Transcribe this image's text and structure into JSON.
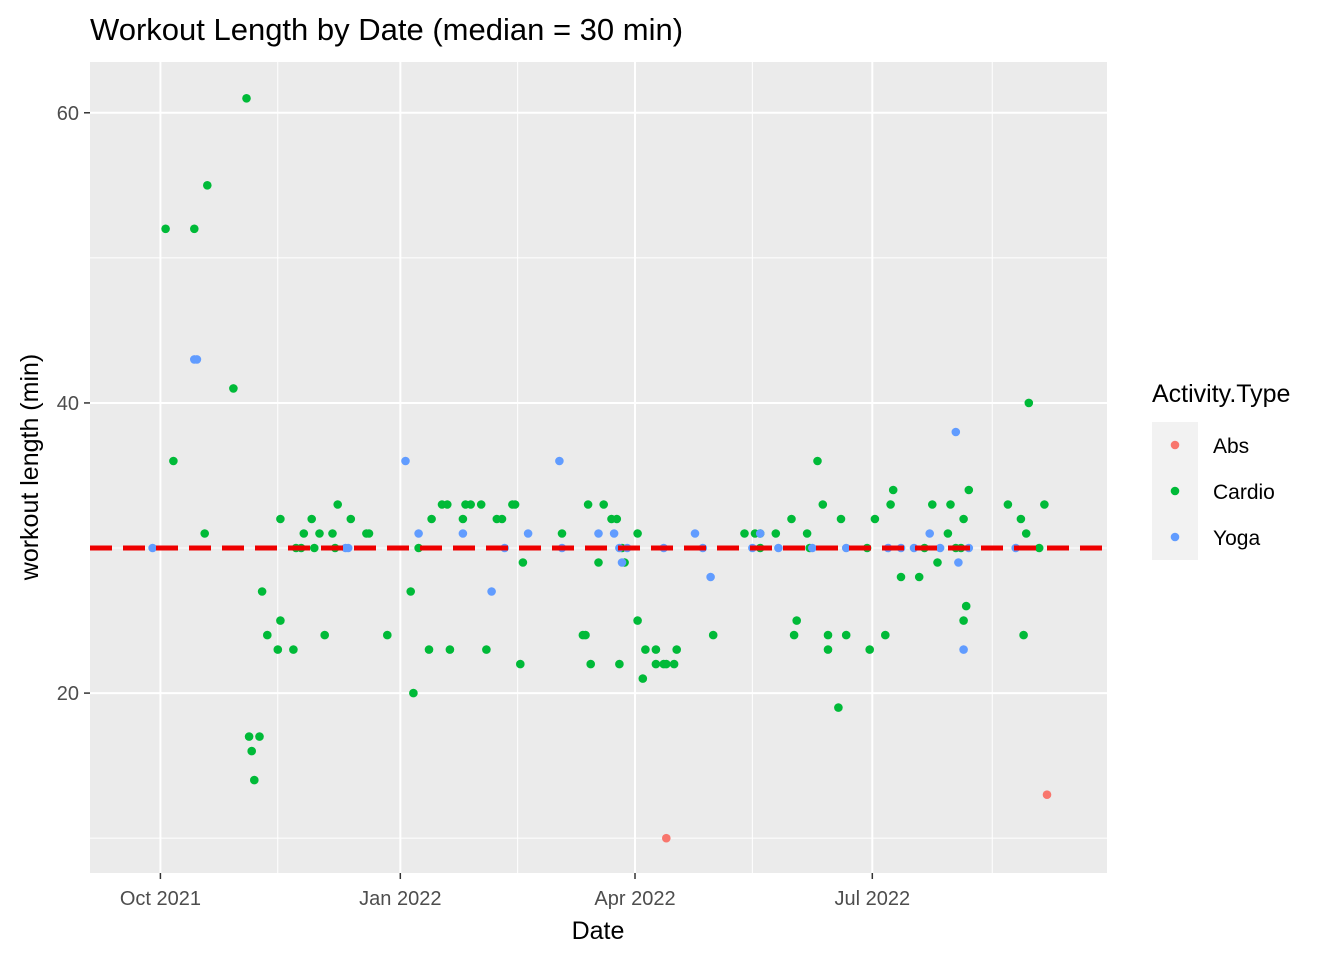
{
  "chart_data": {
    "type": "scatter",
    "title": "Workout Length by Date (median =  30  min)",
    "xlabel": "Date",
    "ylabel": "workout length (min)",
    "x_ticks": [
      "2021-10-01",
      "2022-01-01",
      "2022-04-01",
      "2022-07-01"
    ],
    "x_tick_labels": [
      "Oct 2021",
      "Jan 2022",
      "Apr 2022",
      "Jul 2022"
    ],
    "x_minor_ticks": [
      "2021-11-15",
      "2022-02-15",
      "2022-05-16",
      "2022-08-16"
    ],
    "xlim": [
      "2021-09-04",
      "2022-09-29"
    ],
    "y_ticks": [
      20,
      40,
      60
    ],
    "y_minor_ticks": [
      10,
      30,
      50
    ],
    "ylim": [
      7.6,
      63.5
    ],
    "grid": true,
    "median_line": {
      "value": 30,
      "color": "#ee0000",
      "style": "dashed"
    },
    "legend": {
      "title": "Activity.Type",
      "position": "right"
    },
    "series": [
      {
        "name": "Abs",
        "color": "#F8766D",
        "points": [
          [
            "2022-04-13",
            10
          ],
          [
            "2022-09-06",
            13
          ]
        ]
      },
      {
        "name": "Cardio",
        "color": "#00BA38",
        "points": [
          [
            "2021-10-03",
            52
          ],
          [
            "2021-10-06",
            36
          ],
          [
            "2021-10-14",
            52
          ],
          [
            "2021-10-19",
            55
          ],
          [
            "2021-10-18",
            31
          ],
          [
            "2021-10-29",
            41
          ],
          [
            "2021-11-03",
            61
          ],
          [
            "2021-11-04",
            17
          ],
          [
            "2021-11-05",
            16
          ],
          [
            "2021-11-06",
            14
          ],
          [
            "2021-11-08",
            17
          ],
          [
            "2021-11-09",
            27
          ],
          [
            "2021-11-11",
            24
          ],
          [
            "2021-11-15",
            23
          ],
          [
            "2021-11-16",
            32
          ],
          [
            "2021-11-16",
            25
          ],
          [
            "2021-11-21",
            23
          ],
          [
            "2021-11-22",
            30
          ],
          [
            "2021-11-24",
            30
          ],
          [
            "2021-11-25",
            31
          ],
          [
            "2021-11-28",
            32
          ],
          [
            "2021-11-29",
            30
          ],
          [
            "2021-12-01",
            31
          ],
          [
            "2021-12-03",
            24
          ],
          [
            "2021-12-06",
            31
          ],
          [
            "2021-12-07",
            30
          ],
          [
            "2021-12-08",
            33
          ],
          [
            "2021-12-13",
            32
          ],
          [
            "2021-12-19",
            31
          ],
          [
            "2021-12-20",
            31
          ],
          [
            "2021-12-27",
            24
          ],
          [
            "2022-01-05",
            27
          ],
          [
            "2022-01-06",
            20
          ],
          [
            "2022-01-08",
            30
          ],
          [
            "2022-01-12",
            23
          ],
          [
            "2022-01-13",
            32
          ],
          [
            "2022-01-17",
            33
          ],
          [
            "2022-01-19",
            33
          ],
          [
            "2022-01-20",
            23
          ],
          [
            "2022-01-25",
            32
          ],
          [
            "2022-01-26",
            33
          ],
          [
            "2022-01-28",
            33
          ],
          [
            "2022-02-01",
            33
          ],
          [
            "2022-02-03",
            23
          ],
          [
            "2022-02-07",
            32
          ],
          [
            "2022-02-09",
            32
          ],
          [
            "2022-02-13",
            33
          ],
          [
            "2022-02-14",
            33
          ],
          [
            "2022-02-16",
            22
          ],
          [
            "2022-02-17",
            29
          ],
          [
            "2022-03-04",
            31
          ],
          [
            "2022-03-12",
            24
          ],
          [
            "2022-03-13",
            24
          ],
          [
            "2022-03-14",
            33
          ],
          [
            "2022-03-15",
            22
          ],
          [
            "2022-03-18",
            29
          ],
          [
            "2022-03-20",
            33
          ],
          [
            "2022-03-23",
            32
          ],
          [
            "2022-03-25",
            32
          ],
          [
            "2022-03-26",
            22
          ],
          [
            "2022-03-27",
            30
          ],
          [
            "2022-03-28",
            29
          ],
          [
            "2022-04-02",
            25
          ],
          [
            "2022-04-02",
            31
          ],
          [
            "2022-04-04",
            21
          ],
          [
            "2022-04-05",
            23
          ],
          [
            "2022-04-09",
            23
          ],
          [
            "2022-04-09",
            22
          ],
          [
            "2022-04-12",
            22
          ],
          [
            "2022-04-13",
            22
          ],
          [
            "2022-04-16",
            22
          ],
          [
            "2022-04-17",
            23
          ],
          [
            "2022-05-01",
            24
          ],
          [
            "2022-05-13",
            31
          ],
          [
            "2022-05-17",
            31
          ],
          [
            "2022-05-19",
            31
          ],
          [
            "2022-05-19",
            30
          ],
          [
            "2022-05-25",
            31
          ],
          [
            "2022-05-31",
            32
          ],
          [
            "2022-06-01",
            24
          ],
          [
            "2022-06-02",
            25
          ],
          [
            "2022-06-06",
            31
          ],
          [
            "2022-06-07",
            30
          ],
          [
            "2022-06-10",
            36
          ],
          [
            "2022-06-12",
            33
          ],
          [
            "2022-06-14",
            24
          ],
          [
            "2022-06-14",
            23
          ],
          [
            "2022-06-18",
            19
          ],
          [
            "2022-06-19",
            32
          ],
          [
            "2022-06-21",
            24
          ],
          [
            "2022-06-29",
            30
          ],
          [
            "2022-06-30",
            23
          ],
          [
            "2022-07-02",
            32
          ],
          [
            "2022-07-06",
            24
          ],
          [
            "2022-07-08",
            33
          ],
          [
            "2022-07-09",
            34
          ],
          [
            "2022-07-12",
            28
          ],
          [
            "2022-07-19",
            28
          ],
          [
            "2022-07-21",
            30
          ],
          [
            "2022-07-24",
            33
          ],
          [
            "2022-07-26",
            29
          ],
          [
            "2022-07-30",
            31
          ],
          [
            "2022-07-31",
            33
          ],
          [
            "2022-08-02",
            30
          ],
          [
            "2022-08-04",
            30
          ],
          [
            "2022-08-05",
            25
          ],
          [
            "2022-08-05",
            32
          ],
          [
            "2022-08-06",
            26
          ],
          [
            "2022-08-07",
            34
          ],
          [
            "2022-08-22",
            33
          ],
          [
            "2022-08-27",
            32
          ],
          [
            "2022-08-28",
            24
          ],
          [
            "2022-08-29",
            31
          ],
          [
            "2022-08-30",
            40
          ],
          [
            "2022-09-03",
            30
          ],
          [
            "2022-09-05",
            33
          ]
        ]
      },
      {
        "name": "Yoga",
        "color": "#619CFF",
        "points": [
          [
            "2021-09-28",
            30
          ],
          [
            "2021-10-14",
            43
          ],
          [
            "2021-10-15",
            43
          ],
          [
            "2021-12-11",
            30
          ],
          [
            "2021-12-12",
            30
          ],
          [
            "2022-01-03",
            36
          ],
          [
            "2022-01-08",
            31
          ],
          [
            "2022-01-25",
            31
          ],
          [
            "2022-02-05",
            27
          ],
          [
            "2022-02-10",
            30
          ],
          [
            "2022-02-19",
            31
          ],
          [
            "2022-03-03",
            36
          ],
          [
            "2022-03-04",
            30
          ],
          [
            "2022-03-18",
            31
          ],
          [
            "2022-03-24",
            31
          ],
          [
            "2022-03-26",
            30
          ],
          [
            "2022-03-27",
            29
          ],
          [
            "2022-03-29",
            30
          ],
          [
            "2022-04-12",
            30
          ],
          [
            "2022-04-24",
            31
          ],
          [
            "2022-04-27",
            30
          ],
          [
            "2022-04-30",
            28
          ],
          [
            "2022-05-16",
            30
          ],
          [
            "2022-05-19",
            31
          ],
          [
            "2022-05-26",
            30
          ],
          [
            "2022-06-08",
            30
          ],
          [
            "2022-06-21",
            30
          ],
          [
            "2022-07-07",
            30
          ],
          [
            "2022-07-12",
            30
          ],
          [
            "2022-07-17",
            30
          ],
          [
            "2022-07-23",
            31
          ],
          [
            "2022-07-27",
            30
          ],
          [
            "2022-08-02",
            38
          ],
          [
            "2022-08-03",
            29
          ],
          [
            "2022-08-05",
            23
          ],
          [
            "2022-08-07",
            30
          ],
          [
            "2022-08-25",
            30
          ]
        ]
      }
    ]
  }
}
